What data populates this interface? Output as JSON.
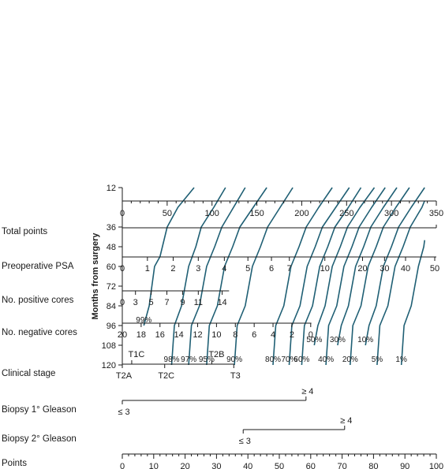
{
  "chart_data": {
    "type": "nomogram",
    "ylabel": "Months from surgery",
    "y_axis_ticks": [
      12,
      36,
      48,
      60,
      72,
      84,
      96,
      108,
      120
    ],
    "ylim": [
      12,
      120
    ],
    "top_points_axis": {
      "ticks": [
        0,
        50,
        100,
        150,
        200,
        250,
        300,
        350
      ],
      "range": [
        0,
        350
      ]
    },
    "curves": [
      {
        "label": "99%",
        "points": [
          [
            24,
            96
          ],
          [
            30,
            84
          ],
          [
            36,
            60
          ],
          [
            42,
            54
          ],
          [
            50,
            36
          ],
          [
            62,
            24
          ],
          [
            80,
            12
          ]
        ]
      },
      {
        "label": "98%",
        "points": [
          [
            55,
            120
          ],
          [
            58,
            96
          ],
          [
            66,
            84
          ],
          [
            74,
            60
          ],
          [
            82,
            48
          ],
          [
            88,
            36
          ],
          [
            102,
            24
          ],
          [
            115,
            12
          ]
        ]
      },
      {
        "label": "97%",
        "points": [
          [
            74,
            120
          ],
          [
            77,
            96
          ],
          [
            86,
            84
          ],
          [
            94,
            60
          ],
          [
            103,
            48
          ],
          [
            111,
            36
          ],
          [
            124,
            24
          ],
          [
            137,
            12
          ]
        ]
      },
      {
        "label": "95%",
        "points": [
          [
            94,
            120
          ],
          [
            97,
            96
          ],
          [
            106,
            84
          ],
          [
            114,
            60
          ],
          [
            123,
            48
          ],
          [
            131,
            36
          ],
          [
            146,
            24
          ],
          [
            161,
            12
          ]
        ]
      },
      {
        "label": "90%",
        "points": [
          [
            125,
            120
          ],
          [
            128,
            96
          ],
          [
            137,
            84
          ],
          [
            145,
            60
          ],
          [
            154,
            48
          ],
          [
            162,
            36
          ],
          [
            176,
            24
          ],
          [
            190,
            12
          ]
        ]
      },
      {
        "label": "80%",
        "points": [
          [
            168,
            120
          ],
          [
            171,
            96
          ],
          [
            180,
            84
          ],
          [
            188,
            60
          ],
          [
            197,
            48
          ],
          [
            205,
            36
          ],
          [
            219,
            24
          ],
          [
            234,
            12
          ]
        ]
      },
      {
        "label": "70%",
        "points": [
          [
            186,
            120
          ],
          [
            189,
            96
          ],
          [
            198,
            84
          ],
          [
            206,
            60
          ],
          [
            215,
            48
          ],
          [
            223,
            36
          ],
          [
            238,
            24
          ],
          [
            253,
            12
          ]
        ]
      },
      {
        "label": "60%",
        "points": [
          [
            200,
            120
          ],
          [
            203,
            96
          ],
          [
            212,
            84
          ],
          [
            220,
            60
          ],
          [
            229,
            48
          ],
          [
            237,
            36
          ],
          [
            252,
            24
          ],
          [
            266,
            12
          ]
        ]
      },
      {
        "label": "50%",
        "points": [
          [
            214,
            108
          ],
          [
            218,
            96
          ],
          [
            226,
            84
          ],
          [
            234,
            60
          ],
          [
            243,
            48
          ],
          [
            251,
            36
          ],
          [
            265,
            24
          ],
          [
            281,
            12
          ]
        ]
      },
      {
        "label": "40%",
        "points": [
          [
            227,
            120
          ],
          [
            230,
            96
          ],
          [
            239,
            84
          ],
          [
            247,
            60
          ],
          [
            256,
            48
          ],
          [
            264,
            36
          ],
          [
            278,
            24
          ],
          [
            293,
            12
          ]
        ]
      },
      {
        "label": "30%",
        "points": [
          [
            240,
            108
          ],
          [
            244,
            96
          ],
          [
            252,
            84
          ],
          [
            260,
            60
          ],
          [
            269,
            48
          ],
          [
            277,
            36
          ],
          [
            291,
            24
          ],
          [
            306,
            12
          ]
        ]
      },
      {
        "label": "20%",
        "points": [
          [
            254,
            120
          ],
          [
            257,
            96
          ],
          [
            266,
            84
          ],
          [
            274,
            60
          ],
          [
            283,
            48
          ],
          [
            291,
            36
          ],
          [
            305,
            24
          ],
          [
            320,
            12
          ]
        ]
      },
      {
        "label": "10%",
        "points": [
          [
            271,
            108
          ],
          [
            275,
            96
          ],
          [
            283,
            84
          ],
          [
            291,
            60
          ],
          [
            300,
            48
          ],
          [
            308,
            36
          ],
          [
            322,
            24
          ],
          [
            337,
            12
          ]
        ]
      },
      {
        "label": "5%",
        "points": [
          [
            284,
            120
          ],
          [
            287,
            96
          ],
          [
            296,
            84
          ],
          [
            304,
            60
          ],
          [
            313,
            48
          ],
          [
            321,
            36
          ],
          [
            334,
            24
          ],
          [
            337,
            20
          ]
        ]
      },
      {
        "label": "1%",
        "points": [
          [
            311,
            120
          ],
          [
            314,
            96
          ],
          [
            322,
            84
          ],
          [
            330,
            60
          ],
          [
            336,
            48
          ],
          [
            337,
            44
          ]
        ]
      }
    ],
    "rows": [
      {
        "label": "Total points",
        "axis": "total"
      },
      {
        "label": "Preoperative PSA",
        "line": [
          0,
          100
        ],
        "ticks": [
          {
            "text": "0",
            "pos": 0
          },
          {
            "text": "1",
            "pos": 8
          },
          {
            "text": "2",
            "pos": 16.2
          },
          {
            "text": "3",
            "pos": 24.2
          },
          {
            "text": "4",
            "pos": 32.5
          },
          {
            "text": "5",
            "pos": 40
          },
          {
            "text": "6",
            "pos": 47.5
          },
          {
            "text": "7",
            "pos": 53.2
          },
          {
            "text": "10",
            "pos": 64.5
          },
          {
            "text": "20",
            "pos": 76.5
          },
          {
            "text": "30",
            "pos": 83.5
          },
          {
            "text": "40",
            "pos": 90.2
          },
          {
            "text": "50",
            "pos": 99.5
          }
        ]
      },
      {
        "label": "No. positive cores",
        "line": [
          0,
          34
        ],
        "ticks": [
          {
            "text": "0",
            "pos": 0
          },
          {
            "text": "3",
            "pos": 4.2
          },
          {
            "text": "5",
            "pos": 9.2
          },
          {
            "text": "7",
            "pos": 14.2
          },
          {
            "text": "9",
            "pos": 19.2
          },
          {
            "text": "11",
            "pos": 24.2
          },
          {
            "text": "14",
            "pos": 31.8
          }
        ]
      },
      {
        "label": "No. negative cores",
        "line": [
          0,
          60.2
        ],
        "ticks": [
          {
            "text": "20",
            "pos": 0
          },
          {
            "text": "18",
            "pos": 6
          },
          {
            "text": "16",
            "pos": 12
          },
          {
            "text": "14",
            "pos": 18
          },
          {
            "text": "12",
            "pos": 24
          },
          {
            "text": "10",
            "pos": 30
          },
          {
            "text": "8",
            "pos": 36
          },
          {
            "text": "6",
            "pos": 42
          },
          {
            "text": "4",
            "pos": 48
          },
          {
            "text": "2",
            "pos": 54
          },
          {
            "text": "0",
            "pos": 60
          }
        ]
      },
      {
        "label": "Clinical stage",
        "line": [
          0,
          35.5
        ],
        "ticks_above": [
          {
            "text": "T1C",
            "pos": 3
          },
          {
            "text": "T2B",
            "pos": 28.5
          }
        ],
        "ticks_below": [
          {
            "text": "T2A",
            "pos": 0
          },
          {
            "text": "T2C",
            "pos": 13.5
          },
          {
            "text": "T3",
            "pos": 35.5
          }
        ]
      },
      {
        "label": "Biopsy 1° Gleason",
        "line": [
          0,
          58.5
        ],
        "labels": [
          {
            "text": "≥ 4",
            "pos": 58.5,
            "side": "above"
          },
          {
            "text": "≤ 3",
            "pos": 0,
            "side": "below"
          }
        ]
      },
      {
        "label": "Biopsy 2° Gleason",
        "line": [
          38.5,
          70.8
        ],
        "labels": [
          {
            "text": "≥ 4",
            "pos": 70.8,
            "side": "above"
          },
          {
            "text": "≤ 3",
            "pos": 38.5,
            "side": "below"
          }
        ]
      },
      {
        "label": "Points",
        "axis": "points",
        "ticks": [
          0,
          10,
          20,
          30,
          40,
          50,
          60,
          70,
          80,
          90,
          100
        ]
      }
    ]
  }
}
